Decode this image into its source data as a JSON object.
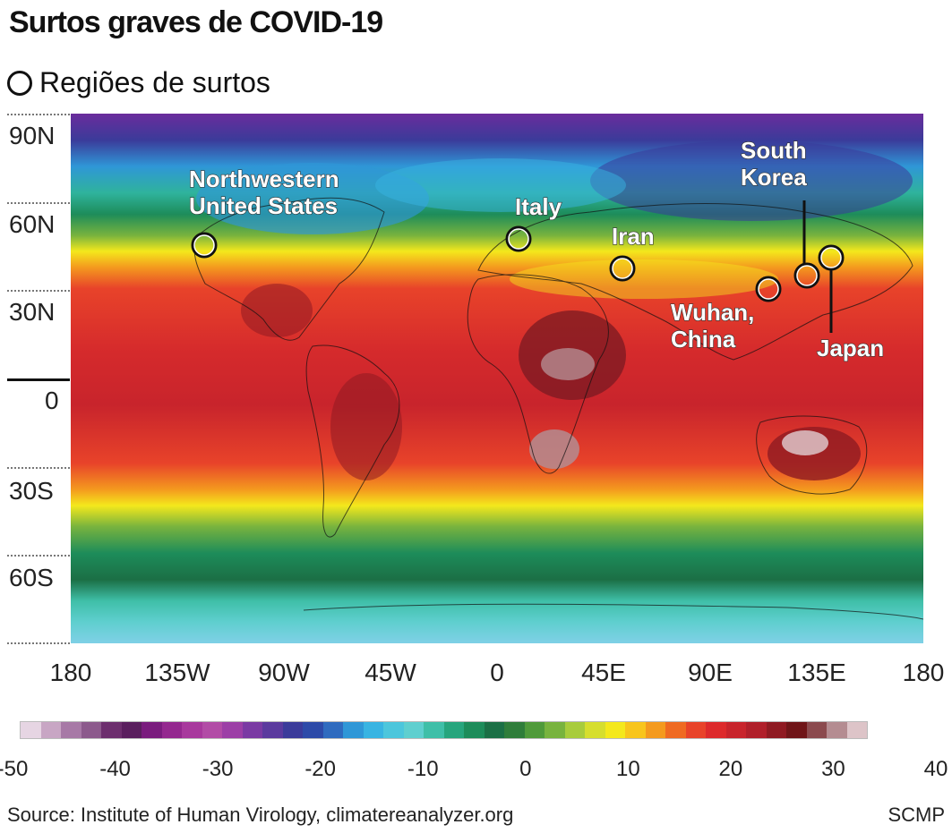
{
  "title": "Surtos graves de COVID-19",
  "legend": {
    "label": "Regiões de surtos"
  },
  "latitude_labels": [
    "90N",
    "60N",
    "30N",
    "0",
    "30S",
    "60S"
  ],
  "longitude_labels": [
    "180",
    "135W",
    "90W",
    "45W",
    "0",
    "45E",
    "90E",
    "135E",
    "180"
  ],
  "colorbar": {
    "tick_labels": [
      "-50",
      "-40",
      "-30",
      "-20",
      "-10",
      "0",
      "10",
      "20",
      "30",
      "40"
    ],
    "colors": [
      "#e6d5e3",
      "#c8a6c4",
      "#a779a6",
      "#8c5a8c",
      "#6d2f6e",
      "#5a1f5e",
      "#7a1c7e",
      "#94288f",
      "#a8399d",
      "#b24ca6",
      "#9c3fa6",
      "#7a3aa3",
      "#5b3a9e",
      "#3b3b9a",
      "#2d4aa8",
      "#2f6bbf",
      "#2f97d7",
      "#38b4e2",
      "#4cc6dc",
      "#5fcfcf",
      "#3fbfa8",
      "#27a57d",
      "#1d8c5a",
      "#1b6f45",
      "#2f7d3a",
      "#4f9a3a",
      "#78b33e",
      "#a8cc3c",
      "#d6de2e",
      "#f4e81c",
      "#f8c51c",
      "#f49a1e",
      "#ef6a22",
      "#e8432a",
      "#dd2a2c",
      "#c8242c",
      "#b01f2a",
      "#8f1a22",
      "#6f1518",
      "#8b4a4e",
      "#b48c91",
      "#ddc4c8"
    ]
  },
  "outbreak_regions": [
    {
      "name": "Northwestern United States",
      "lines": [
        "Northwestern",
        "United States"
      ]
    },
    {
      "name": "Italy",
      "lines": [
        "Italy"
      ]
    },
    {
      "name": "Iran",
      "lines": [
        "Iran"
      ]
    },
    {
      "name": "Wuhan, China",
      "lines": [
        "Wuhan,",
        "China"
      ]
    },
    {
      "name": "South Korea",
      "lines": [
        "South",
        "Korea"
      ]
    },
    {
      "name": "Japan",
      "lines": [
        "Japan"
      ]
    }
  ],
  "source": "Source: Institute of Human Virology, climatereanalyzer.org",
  "credit": "SCMP"
}
